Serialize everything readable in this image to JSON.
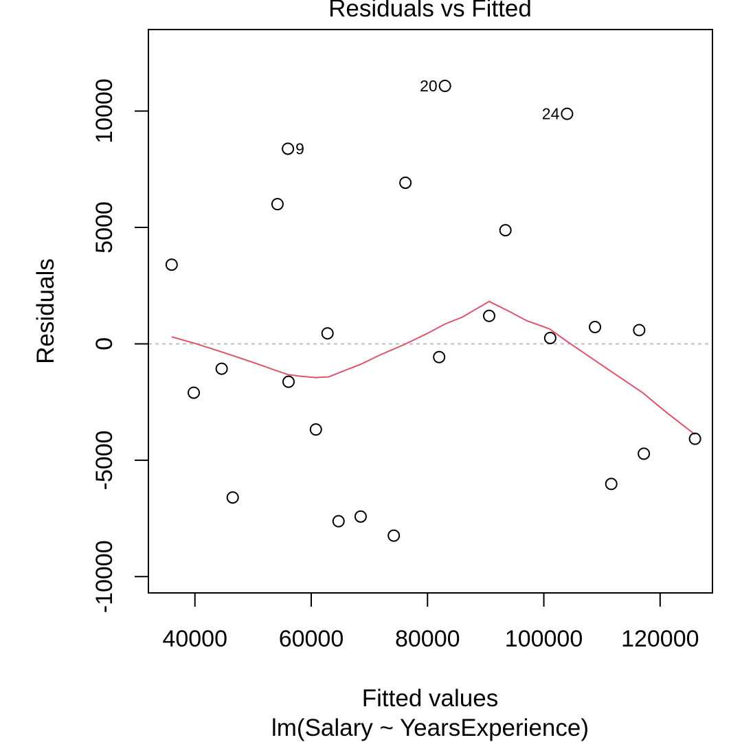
{
  "chart_data": {
    "type": "scatter",
    "title": "Residuals vs Fitted",
    "xlabel": "Fitted values",
    "ylabel": "Residuals",
    "subtitle": "lm(Salary ~ YearsExperience)",
    "xlim": [
      32000,
      129000
    ],
    "ylim": [
      -10700,
      13500
    ],
    "x_ticks": [
      40000,
      60000,
      80000,
      100000,
      120000
    ],
    "x_tick_labels": [
      "40000",
      "60000",
      "80000",
      "100000",
      "120000"
    ],
    "y_ticks": [
      -10000,
      -5000,
      0,
      5000,
      10000
    ],
    "y_tick_labels": [
      "-10000",
      "-5000",
      "0",
      "5000",
      "10000"
    ],
    "points": {
      "x": [
        36000,
        39800,
        44600,
        46500,
        54200,
        56000,
        56100,
        60800,
        62800,
        64700,
        68500,
        74200,
        76200,
        82000,
        83000,
        90600,
        93400,
        101100,
        104000,
        108800,
        111600,
        116400,
        117200,
        126000
      ],
      "y": [
        3400,
        -2100,
        -1070,
        -6600,
        6000,
        8380,
        -1630,
        -3680,
        450,
        -7620,
        -7420,
        -8240,
        6920,
        -570,
        11080,
        1200,
        4880,
        250,
        9880,
        720,
        -6020,
        590,
        -4720,
        -4080
      ]
    },
    "point_labels": [
      {
        "label": "9",
        "x": 56000,
        "y": 8380,
        "side": "right"
      },
      {
        "label": "20",
        "x": 83000,
        "y": 11080,
        "side": "left"
      },
      {
        "label": "24",
        "x": 104000,
        "y": 9880,
        "side": "left"
      }
    ],
    "smooth_line": {
      "x": [
        36000,
        40000,
        45000,
        50000,
        54000,
        56000,
        58000,
        60800,
        62000,
        63000,
        65000,
        68500,
        72000,
        76000,
        80000,
        83000,
        86000,
        90600,
        94000,
        97000,
        101000,
        104000,
        108000,
        112000,
        117000,
        121000,
        126000
      ],
      "y": [
        300,
        20,
        -380,
        -800,
        -1150,
        -1320,
        -1390,
        -1450,
        -1430,
        -1420,
        -1220,
        -880,
        -460,
        -30,
        450,
        850,
        1150,
        1820,
        1400,
        1000,
        640,
        100,
        -580,
        -1260,
        -2100,
        -2930,
        -3900
      ]
    },
    "reference_line_y": 0,
    "colors": {
      "points": "#000000",
      "smooth": "#DF536B",
      "reference": "#BEBEBE",
      "frame": "#000000"
    },
    "grid": false,
    "legend": "none"
  }
}
